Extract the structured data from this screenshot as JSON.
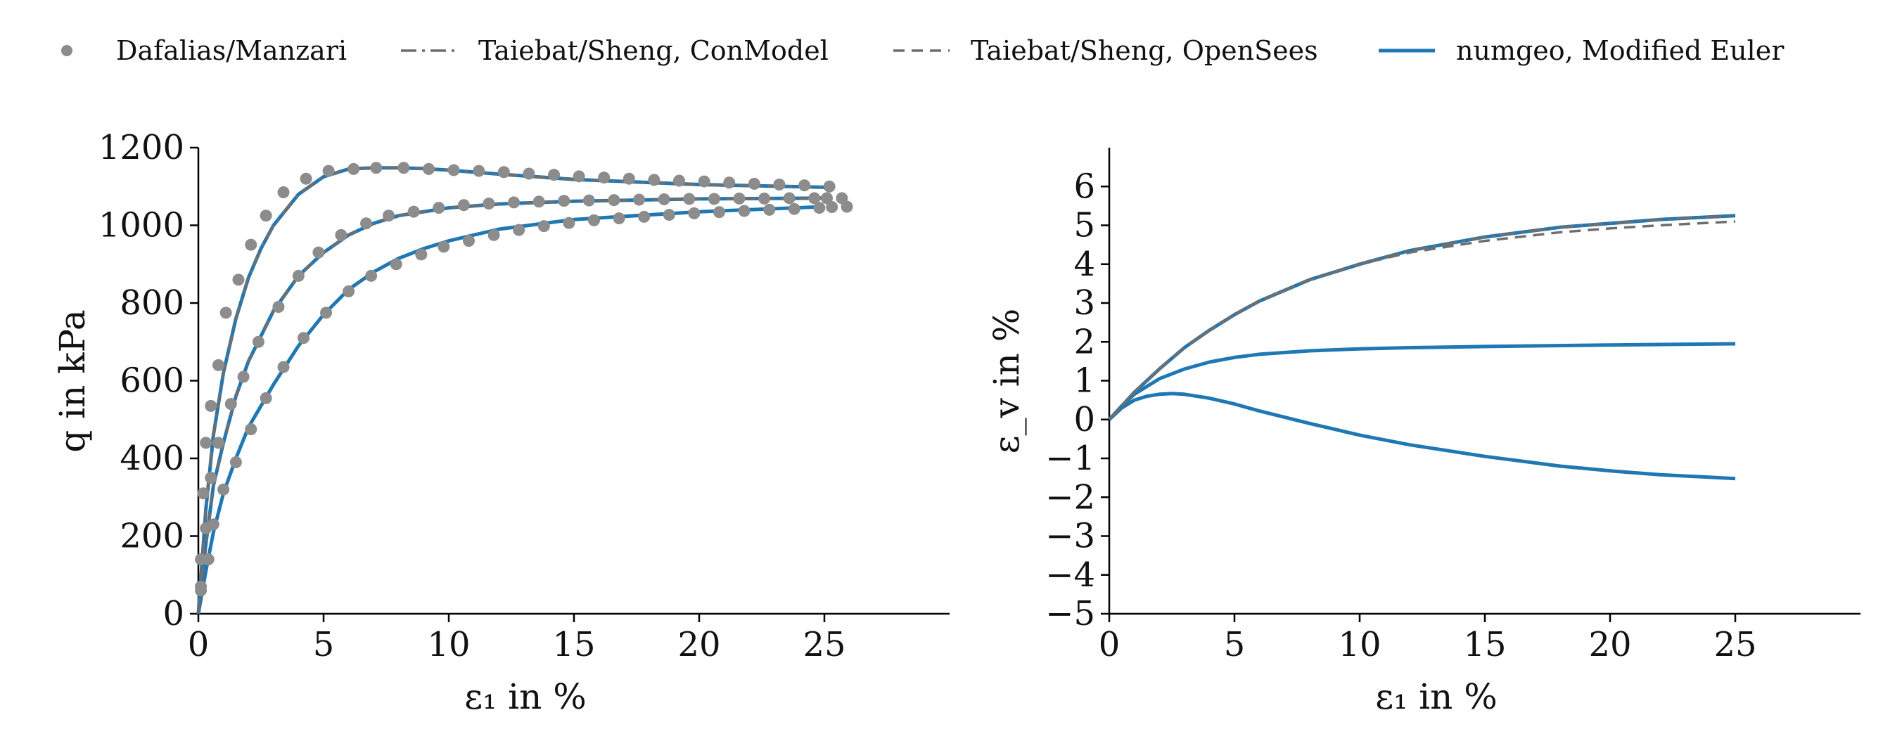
{
  "legend": {
    "items": [
      {
        "label": "Dafalias/Manzari",
        "style": "markers",
        "color": "#8c8c8c"
      },
      {
        "label": "Taiebat/Sheng, ConModel",
        "style": "dashdot",
        "color": "#6e6e6e"
      },
      {
        "label": "Taiebat/Sheng, OpenSees",
        "style": "dashed",
        "color": "#6e6e6e"
      },
      {
        "label": "numgeo, Modified Euler",
        "style": "solid",
        "color": "#1f77b4"
      }
    ]
  },
  "colors": {
    "reference_markers": "#8c8c8c",
    "conmodel": "#6e6e6e",
    "opensees": "#6e6e6e",
    "numgeo": "#1f77b4",
    "axis": "#000000"
  },
  "chart_data": [
    {
      "type": "line",
      "xlabel": "ε₁ in %",
      "ylabel": "q in kPa",
      "xlim": [
        0,
        30
      ],
      "ylim": [
        0,
        1200
      ],
      "xticks": [
        0,
        5,
        10,
        15,
        20,
        25
      ],
      "yticks": [
        0,
        200,
        400,
        600,
        800,
        1000,
        1200
      ],
      "grid": false,
      "legend_position": "top",
      "series": [
        {
          "name": "numgeo, Modified Euler",
          "style": "solid",
          "x": [
            0,
            0.3,
            0.6,
            1,
            1.5,
            2,
            2.5,
            3,
            3.5,
            4,
            5,
            6,
            7,
            8,
            9,
            10,
            12,
            15,
            20,
            25
          ],
          "y": [
            0,
            270,
            460,
            620,
            760,
            865,
            940,
            1000,
            1040,
            1080,
            1125,
            1145,
            1148,
            1148,
            1146,
            1142,
            1132,
            1118,
            1105,
            1098
          ]
        },
        {
          "name": "numgeo, Modified Euler",
          "style": "solid",
          "x": [
            0,
            0.3,
            0.6,
            1,
            1.5,
            2,
            3,
            4,
            5,
            6,
            7,
            8,
            10,
            12,
            15,
            20,
            25
          ],
          "y": [
            0,
            180,
            330,
            440,
            560,
            650,
            780,
            870,
            930,
            975,
            1005,
            1025,
            1045,
            1055,
            1062,
            1068,
            1070
          ]
        },
        {
          "name": "numgeo, Modified Euler",
          "style": "solid",
          "x": [
            0,
            0.3,
            0.6,
            1,
            1.5,
            2,
            3,
            4,
            5,
            6,
            7,
            8,
            9,
            10,
            12,
            15,
            20,
            25
          ],
          "y": [
            0,
            110,
            210,
            310,
            400,
            480,
            590,
            690,
            770,
            835,
            880,
            915,
            940,
            960,
            990,
            1015,
            1035,
            1048
          ]
        },
        {
          "name": "Taiebat/Sheng, ConModel",
          "style": "dashdot",
          "x": [
            0,
            0.3,
            0.6,
            1,
            1.5,
            2,
            2.5,
            3,
            3.5,
            4,
            5,
            6,
            7,
            8,
            9,
            10,
            12,
            15,
            20,
            25
          ],
          "y": [
            0,
            270,
            460,
            620,
            760,
            865,
            940,
            1000,
            1040,
            1080,
            1125,
            1145,
            1148,
            1148,
            1146,
            1142,
            1132,
            1118,
            1105,
            1098
          ]
        },
        {
          "name": "Taiebat/Sheng, OpenSees",
          "style": "dashed",
          "x": [
            0,
            0.3,
            0.6,
            1,
            1.5,
            2,
            3,
            4,
            5,
            6,
            7,
            8,
            10,
            12,
            15,
            20,
            25
          ],
          "y": [
            0,
            180,
            330,
            440,
            560,
            650,
            780,
            870,
            930,
            975,
            1005,
            1025,
            1045,
            1055,
            1062,
            1068,
            1070
          ]
        },
        {
          "name": "Dafalias/Manzari",
          "style": "markers",
          "x": [
            0.1,
            0.2,
            0.3,
            0.5,
            0.8,
            1.1,
            1.6,
            2.1,
            2.7,
            3.4,
            4.3,
            5.2,
            6.2,
            7.1,
            8.2,
            9.2,
            10.2,
            11.2,
            12.2,
            13.2,
            14.2,
            15.2,
            16.2,
            17.2,
            18.2,
            19.2,
            20.2,
            21.2,
            22.2,
            23.2,
            24.2,
            25.2,
            25.7
          ],
          "y": [
            140,
            310,
            440,
            535,
            640,
            775,
            860,
            950,
            1025,
            1085,
            1120,
            1140,
            1145,
            1148,
            1148,
            1145,
            1142,
            1140,
            1137,
            1133,
            1130,
            1126,
            1123,
            1120,
            1117,
            1115,
            1113,
            1110,
            1107,
            1105,
            1103,
            1100,
            1070
          ]
        },
        {
          "name": "Dafalias/Manzari",
          "style": "markers",
          "x": [
            0.1,
            0.3,
            0.5,
            0.8,
            1.3,
            1.8,
            2.4,
            3.2,
            4.0,
            4.8,
            5.7,
            6.7,
            7.6,
            8.6,
            9.6,
            10.6,
            11.6,
            12.6,
            13.6,
            14.6,
            15.6,
            16.6,
            17.6,
            18.6,
            19.6,
            20.6,
            21.6,
            22.6,
            23.6,
            24.6,
            25.1
          ],
          "y": [
            70,
            220,
            350,
            440,
            540,
            610,
            700,
            790,
            870,
            930,
            975,
            1005,
            1025,
            1035,
            1045,
            1052,
            1056,
            1059,
            1061,
            1063,
            1064,
            1065,
            1066,
            1067,
            1068,
            1068,
            1069,
            1069,
            1070,
            1070,
            1070
          ]
        },
        {
          "name": "Dafalias/Manzari",
          "style": "markers",
          "x": [
            0.1,
            0.4,
            0.6,
            1.0,
            1.5,
            2.1,
            2.7,
            3.4,
            4.2,
            5.1,
            6.0,
            6.9,
            7.9,
            8.9,
            9.8,
            10.8,
            11.8,
            12.8,
            13.8,
            14.8,
            15.8,
            16.8,
            17.8,
            18.8,
            19.8,
            20.8,
            21.8,
            22.8,
            23.8,
            24.8,
            25.3,
            25.9
          ],
          "y": [
            60,
            140,
            230,
            320,
            390,
            475,
            555,
            635,
            710,
            775,
            830,
            870,
            900,
            925,
            945,
            960,
            975,
            988,
            998,
            1006,
            1013,
            1018,
            1022,
            1027,
            1031,
            1034,
            1037,
            1040,
            1042,
            1045,
            1047,
            1048
          ]
        }
      ]
    },
    {
      "type": "line",
      "xlabel": "ε₁ in %",
      "ylabel": "ε_v in %",
      "xlim": [
        0,
        30
      ],
      "ylim": [
        -5,
        7
      ],
      "xticks": [
        0,
        5,
        10,
        15,
        20,
        25
      ],
      "yticks": [
        -5,
        -4,
        -3,
        -2,
        -1,
        0,
        1,
        2,
        3,
        4,
        5,
        6
      ],
      "ytick_labels": [
        "−5",
        "−4",
        "−3",
        "−2",
        "−1",
        "0",
        "1",
        "2",
        "3",
        "4",
        "5",
        "6"
      ],
      "grid": false,
      "series": [
        {
          "name": "numgeo, Modified Euler",
          "style": "solid",
          "x": [
            0,
            0.5,
            1,
            2,
            3,
            4,
            5,
            6,
            8,
            10,
            12,
            15,
            18,
            20,
            22,
            25
          ],
          "y": [
            0,
            0.35,
            0.7,
            1.3,
            1.85,
            2.3,
            2.7,
            3.05,
            3.6,
            4.0,
            4.35,
            4.7,
            4.95,
            5.05,
            5.15,
            5.25
          ]
        },
        {
          "name": "numgeo, Modified Euler",
          "style": "solid",
          "x": [
            0,
            0.5,
            1,
            2,
            3,
            4,
            5,
            6,
            8,
            10,
            12,
            15,
            20,
            25
          ],
          "y": [
            0,
            0.35,
            0.65,
            1.05,
            1.3,
            1.48,
            1.6,
            1.68,
            1.77,
            1.82,
            1.85,
            1.88,
            1.92,
            1.95
          ]
        },
        {
          "name": "numgeo, Modified Euler",
          "style": "solid",
          "x": [
            0,
            0.5,
            1,
            1.5,
            2,
            2.5,
            3,
            4,
            5,
            6,
            8,
            10,
            12,
            15,
            18,
            20,
            22,
            25
          ],
          "y": [
            0,
            0.3,
            0.5,
            0.6,
            0.65,
            0.67,
            0.65,
            0.55,
            0.4,
            0.22,
            -0.1,
            -0.4,
            -0.65,
            -0.95,
            -1.2,
            -1.32,
            -1.42,
            -1.52
          ]
        },
        {
          "name": "Taiebat/Sheng, OpenSees",
          "style": "dashed",
          "x": [
            0,
            0.5,
            1,
            2,
            3,
            4,
            5,
            6,
            8,
            10,
            12,
            15,
            18,
            20,
            22,
            25
          ],
          "y": [
            0,
            0.35,
            0.7,
            1.3,
            1.85,
            2.3,
            2.7,
            3.05,
            3.6,
            4.0,
            4.3,
            4.6,
            4.82,
            4.92,
            5.0,
            5.1
          ]
        },
        {
          "name": "Taiebat/Sheng, ConModel",
          "style": "dashdot",
          "x": [
            0,
            0.5,
            1,
            2,
            3,
            4,
            5,
            6,
            8,
            10,
            12,
            15,
            18,
            20,
            22,
            25
          ],
          "y": [
            0,
            0.35,
            0.7,
            1.3,
            1.85,
            2.3,
            2.7,
            3.05,
            3.6,
            4.0,
            4.35,
            4.7,
            4.95,
            5.05,
            5.15,
            5.25
          ]
        }
      ]
    }
  ]
}
